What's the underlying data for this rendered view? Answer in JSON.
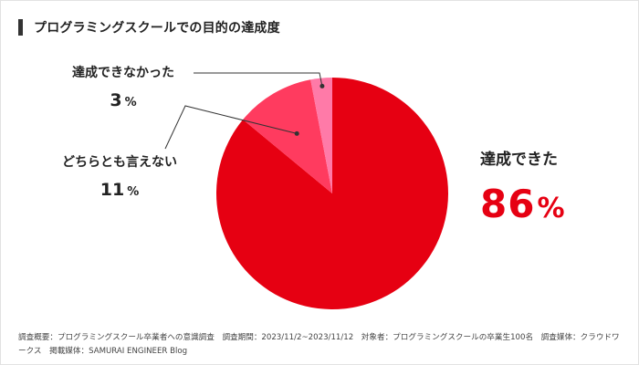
{
  "title": "プログラミングスクールでの目的の達成度",
  "footer": "調査概要：プログラミングスクール卒業者への意識調査　調査期間：2023/11/2~2023/11/12　対象者：プログラミングスクールの卒業生100名　調査媒体：クラウドワークス　掲載媒体：SAMURAI ENGINEER Blog",
  "colors": {
    "title_bar": "#333333",
    "achieved": "#e60012",
    "neither": "#ff3b5f",
    "not_achieved": "#ff7aa8",
    "leader": "#333333"
  },
  "chart_data": {
    "type": "pie",
    "unit": "%",
    "slices": [
      {
        "label": "達成できた",
        "value": 86,
        "color": "#e60012"
      },
      {
        "label": "どちらとも言えない",
        "value": 11,
        "color": "#ff3b5f"
      },
      {
        "label": "達成できなかった",
        "value": 3,
        "color": "#ff7aa8"
      }
    ]
  }
}
